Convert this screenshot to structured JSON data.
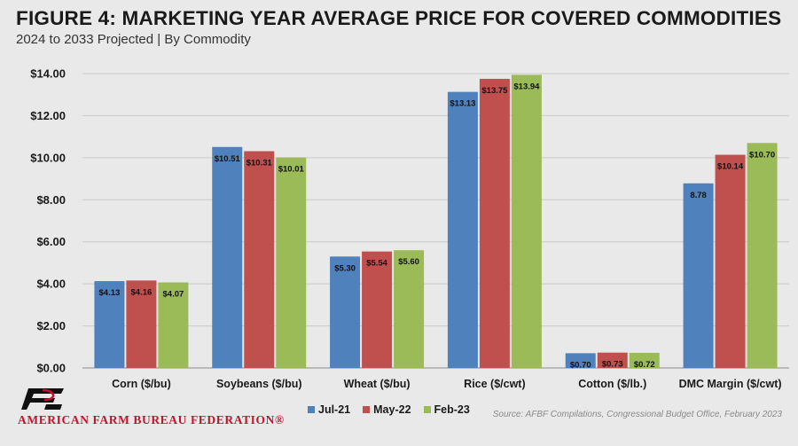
{
  "header": {
    "title": "FIGURE 4: MARKETING YEAR AVERAGE PRICE FOR COVERED COMMODITIES",
    "subtitle": "2024 to 2033 Projected | By Commodity"
  },
  "footer": {
    "organization": "AMERICAN FARM BUREAU FEDERATION®",
    "logo_icon": "afbf-logo-icon",
    "source": "Source: AFBF Compilations, Congressional Budget Office, February 2023"
  },
  "chart_data": {
    "type": "bar",
    "title": "FIGURE 4: MARKETING YEAR AVERAGE PRICE FOR COVERED COMMODITIES",
    "subtitle": "2024 to 2033 Projected | By Commodity",
    "categories": [
      "Corn ($/bu)",
      "Soybeans ($/bu)",
      "Wheat ($/bu)",
      "Rice ($/cwt)",
      "Cotton ($/lb.)",
      "DMC Margin ($/cwt)"
    ],
    "series": [
      {
        "name": "Jul-21",
        "color": "#4f81bd",
        "values": [
          4.13,
          10.51,
          5.3,
          13.13,
          0.7,
          8.78
        ],
        "labels": [
          "$4.13",
          "$10.51",
          "$5.30",
          "$13.13",
          "$0.70",
          "8.78"
        ]
      },
      {
        "name": "May-22",
        "color": "#c0504d",
        "values": [
          4.16,
          10.31,
          5.54,
          13.75,
          0.73,
          10.14
        ],
        "labels": [
          "$4.16",
          "$10.31",
          "$5.54",
          "$13.75",
          "$0.73",
          "$10.14"
        ]
      },
      {
        "name": "Feb-23",
        "color": "#9bbb59",
        "values": [
          4.07,
          10.01,
          5.6,
          13.94,
          0.72,
          10.7
        ],
        "labels": [
          "$4.07",
          "$10.01",
          "$5.60",
          "$13.94",
          "$0.72",
          "$10.70"
        ]
      }
    ],
    "yticks": [
      "$0.00",
      "$2.00",
      "$4.00",
      "$6.00",
      "$8.00",
      "$10.00",
      "$12.00",
      "$14.00"
    ],
    "ylim": [
      0,
      14
    ],
    "grid": true,
    "legend_position": "bottom-center",
    "xlabel": "",
    "ylabel": ""
  }
}
